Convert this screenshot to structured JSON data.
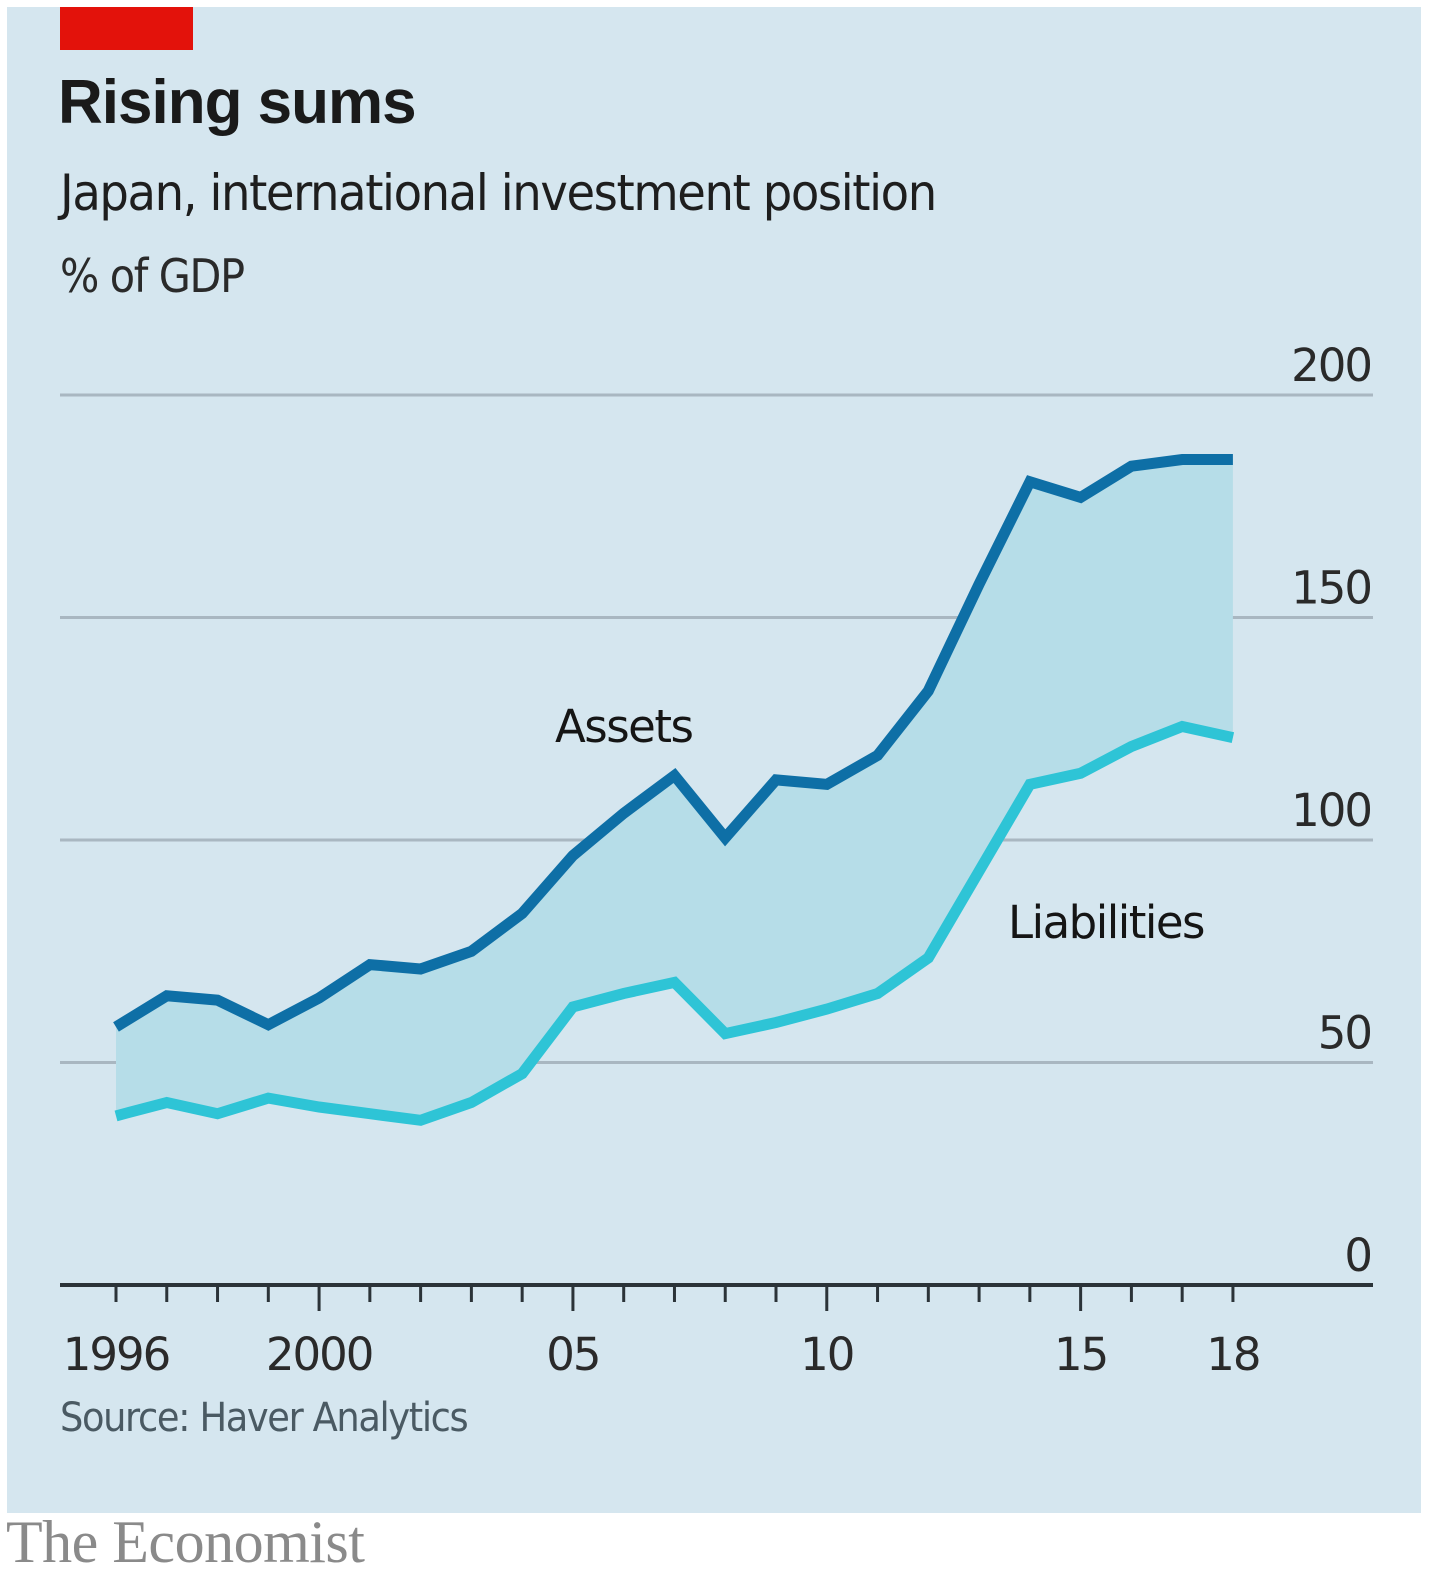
{
  "header": {
    "title": "Rising sums",
    "subtitle": "Japan, international investment position",
    "unit": "% of GDP"
  },
  "footer": {
    "source": "Source: Haver Analytics",
    "brand": "The Economist"
  },
  "colors": {
    "background": "#d5e6ef",
    "accent": "#e3120b",
    "assets": "#0e6fa6",
    "liabilities": "#2ec4d6",
    "gap_fill": "#b6dde8",
    "gridline": "#a9b7c1",
    "axis": "#2b3338"
  },
  "chart_data": {
    "type": "area",
    "title": "Rising sums",
    "subtitle": "Japan, international investment position",
    "ylabel": "% of GDP",
    "xlabel": "",
    "x": [
      1996,
      1997,
      1998,
      1999,
      2000,
      2001,
      2002,
      2003,
      2004,
      2005,
      2006,
      2007,
      2008,
      2009,
      2010,
      2011,
      2012,
      2013,
      2014,
      2015,
      2016,
      2017,
      2018
    ],
    "series": [
      {
        "name": "Assets",
        "values": [
          58,
          65,
          64,
          58.5,
          64.5,
          72,
          71,
          75,
          83.5,
          96.5,
          106,
          114.5,
          100.5,
          113.5,
          112.5,
          119,
          133.5,
          157.5,
          180.5,
          177,
          184,
          185.5,
          185.5
        ]
      },
      {
        "name": "Liabilities",
        "values": [
          38,
          41,
          38.5,
          42,
          40,
          38.5,
          37,
          41,
          47.5,
          62.5,
          65.5,
          68,
          56.5,
          59,
          62,
          65.5,
          73.5,
          93,
          112.5,
          115,
          121,
          125.5,
          123
        ]
      }
    ],
    "shaded_between": [
      "Assets",
      "Liabilities"
    ],
    "ylim": [
      0,
      200
    ],
    "yticks": [
      0,
      50,
      100,
      150,
      200
    ],
    "ytick_labels": [
      "0",
      "50",
      "100",
      "150",
      "200"
    ],
    "xlim": [
      1995,
      2020
    ],
    "xticks_major": [
      1996,
      2000,
      2005,
      2010,
      2015,
      2018
    ],
    "xtick_labels": [
      "1996",
      "2000",
      "05",
      "10",
      "15",
      "18"
    ],
    "grid": true,
    "y_axis_position": "right",
    "legend": "inline labels",
    "annotations": [
      {
        "text": "Assets",
        "x": 2006,
        "y": 122
      },
      {
        "text": "Liabilities",
        "x": 2015.5,
        "y": 78
      }
    ]
  }
}
